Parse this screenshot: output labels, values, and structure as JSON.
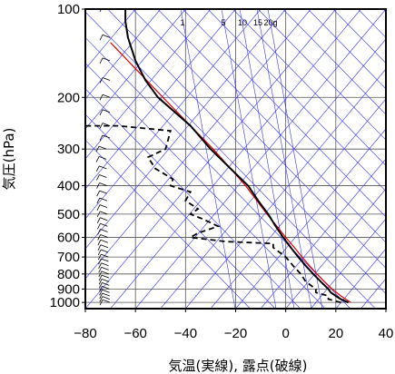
{
  "chart_data": {
    "type": "skew-t",
    "xlabel": "気温(実線), 露点(破線)",
    "ylabel": "気圧(hPa)",
    "x_ticks": [
      -80,
      -60,
      -40,
      -20,
      0,
      20,
      40
    ],
    "xlim": [
      -80,
      40
    ],
    "y_ticks": [
      100,
      200,
      300,
      400,
      500,
      600,
      700,
      800,
      900,
      1000
    ],
    "ylim": [
      100,
      1050
    ],
    "y_scale": "log",
    "grid": true,
    "mixing_ratio_labels": [
      "1",
      "5",
      "10",
      "15",
      "20g"
    ],
    "mixing_ratio_values": [
      1,
      5,
      10,
      15,
      20
    ],
    "colors": {
      "temperature": "#000000",
      "dewpoint": "#000000",
      "parcel": "#e60000",
      "adiabats": "#3333ff",
      "isotherms": "#3333ff",
      "grid": "#555555"
    },
    "temperature": [
      {
        "p": 1000,
        "t": 25
      },
      {
        "p": 975,
        "t": 22
      },
      {
        "p": 950,
        "t": 20
      },
      {
        "p": 925,
        "t": 18
      },
      {
        "p": 900,
        "t": 17
      },
      {
        "p": 850,
        "t": 14
      },
      {
        "p": 800,
        "t": 11
      },
      {
        "p": 750,
        "t": 8
      },
      {
        "p": 700,
        "t": 5
      },
      {
        "p": 650,
        "t": 2
      },
      {
        "p": 600,
        "t": -1
      },
      {
        "p": 550,
        "t": -4
      },
      {
        "p": 500,
        "t": -7
      },
      {
        "p": 450,
        "t": -11
      },
      {
        "p": 400,
        "t": -15
      },
      {
        "p": 350,
        "t": -22
      },
      {
        "p": 300,
        "t": -30
      },
      {
        "p": 250,
        "t": -38
      },
      {
        "p": 200,
        "t": -51
      },
      {
        "p": 175,
        "t": -56
      },
      {
        "p": 150,
        "t": -60
      },
      {
        "p": 125,
        "t": -63
      },
      {
        "p": 110,
        "t": -64
      },
      {
        "p": 100,
        "t": -64
      }
    ],
    "dewpoint": [
      {
        "p": 1000,
        "t": 22
      },
      {
        "p": 975,
        "t": 17
      },
      {
        "p": 950,
        "t": 17
      },
      {
        "p": 925,
        "t": 12
      },
      {
        "p": 900,
        "t": 12
      },
      {
        "p": 850,
        "t": 8
      },
      {
        "p": 800,
        "t": 6
      },
      {
        "p": 750,
        "t": 3
      },
      {
        "p": 700,
        "t": 0
      },
      {
        "p": 650,
        "t": -5
      },
      {
        "p": 630,
        "t": -5
      },
      {
        "p": 620,
        "t": -24
      },
      {
        "p": 600,
        "t": -38
      },
      {
        "p": 580,
        "t": -35
      },
      {
        "p": 550,
        "t": -27
      },
      {
        "p": 520,
        "t": -33
      },
      {
        "p": 500,
        "t": -38
      },
      {
        "p": 480,
        "t": -35
      },
      {
        "p": 450,
        "t": -40
      },
      {
        "p": 420,
        "t": -38
      },
      {
        "p": 400,
        "t": -46
      },
      {
        "p": 380,
        "t": -45
      },
      {
        "p": 350,
        "t": -52
      },
      {
        "p": 320,
        "t": -55
      },
      {
        "p": 300,
        "t": -48
      },
      {
        "p": 280,
        "t": -47
      },
      {
        "p": 260,
        "t": -46
      },
      {
        "p": 250,
        "t": -67
      },
      {
        "p": 250,
        "t": -80
      }
    ],
    "parcel": [
      {
        "p": 1000,
        "t": 26
      },
      {
        "p": 950,
        "t": 22
      },
      {
        "p": 900,
        "t": 18.5
      },
      {
        "p": 850,
        "t": 15.5
      },
      {
        "p": 800,
        "t": 12.5
      },
      {
        "p": 750,
        "t": 9.5
      },
      {
        "p": 700,
        "t": 6.5
      },
      {
        "p": 650,
        "t": 3.5
      },
      {
        "p": 600,
        "t": 0
      },
      {
        "p": 550,
        "t": -3.5
      },
      {
        "p": 500,
        "t": -7.5
      },
      {
        "p": 450,
        "t": -11.5
      },
      {
        "p": 400,
        "t": -16
      },
      {
        "p": 350,
        "t": -22
      },
      {
        "p": 300,
        "t": -29
      },
      {
        "p": 250,
        "t": -38
      },
      {
        "p": 200,
        "t": -49
      },
      {
        "p": 150,
        "t": -63
      },
      {
        "p": 130,
        "t": -70
      }
    ]
  }
}
